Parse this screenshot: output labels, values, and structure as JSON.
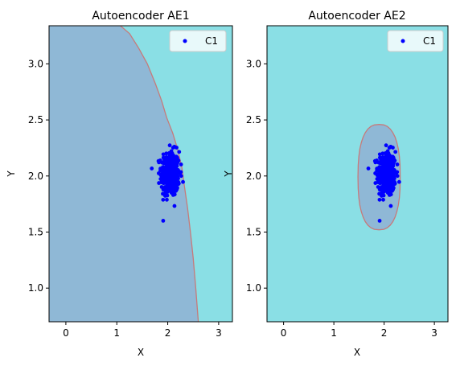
{
  "chart_data": [
    {
      "type": "scatter",
      "title": "Autoencoder AE1",
      "xlabel": "X",
      "ylabel": "Y",
      "xlim": [
        -0.33,
        3.27
      ],
      "ylim": [
        0.7,
        3.34
      ],
      "xticks": [
        0,
        1,
        2,
        3
      ],
      "yticks": [
        1.0,
        1.5,
        2.0,
        2.5,
        3.0
      ],
      "ytick_labels": [
        "1.0",
        "1.5",
        "2.0",
        "2.5",
        "3.0"
      ],
      "grid": false,
      "legend_position": "upper-right",
      "background_color": "#8adfe5",
      "region_color": "#8fb8d6",
      "boundary_color": "#c77a7a",
      "series": [
        {
          "name": "C1",
          "color": "#0000ff",
          "center": [
            2.05,
            2.02
          ],
          "std": [
            0.09,
            0.1
          ],
          "count": 400
        }
      ],
      "decision_boundary": [
        [
          1.07,
          3.34
        ],
        [
          1.25,
          3.27
        ],
        [
          1.43,
          3.14
        ],
        [
          1.6,
          3.0
        ],
        [
          1.76,
          2.82
        ],
        [
          1.88,
          2.67
        ],
        [
          1.98,
          2.52
        ],
        [
          2.1,
          2.38
        ],
        [
          2.2,
          2.23
        ],
        [
          2.28,
          2.07
        ],
        [
          2.33,
          1.9
        ],
        [
          2.39,
          1.71
        ],
        [
          2.45,
          1.48
        ],
        [
          2.5,
          1.27
        ],
        [
          2.55,
          1.0
        ],
        [
          2.6,
          0.7
        ]
      ]
    },
    {
      "type": "scatter",
      "title": "Autoencoder AE2",
      "xlabel": "X",
      "ylabel": "Y",
      "xlim": [
        -0.33,
        3.27
      ],
      "ylim": [
        0.7,
        3.34
      ],
      "xticks": [
        0,
        1,
        2,
        3
      ],
      "yticks": [
        1.0,
        1.5,
        2.0,
        2.5,
        3.0
      ],
      "ytick_labels": [
        "1.0",
        "1.5",
        "2.0",
        "2.5",
        "3.0"
      ],
      "grid": false,
      "legend_position": "upper-right",
      "background_color": "#8adfe5",
      "region_color": "#8fb8d6",
      "boundary_color": "#c77a7a",
      "series": [
        {
          "name": "C1",
          "color": "#0000ff",
          "center": [
            2.05,
            2.02
          ],
          "std": [
            0.09,
            0.1
          ],
          "count": 400
        }
      ],
      "decision_boundary_ellipse": {
        "center": [
          1.9,
          1.99
        ],
        "rx": 0.42,
        "ry": 0.47
      }
    }
  ]
}
